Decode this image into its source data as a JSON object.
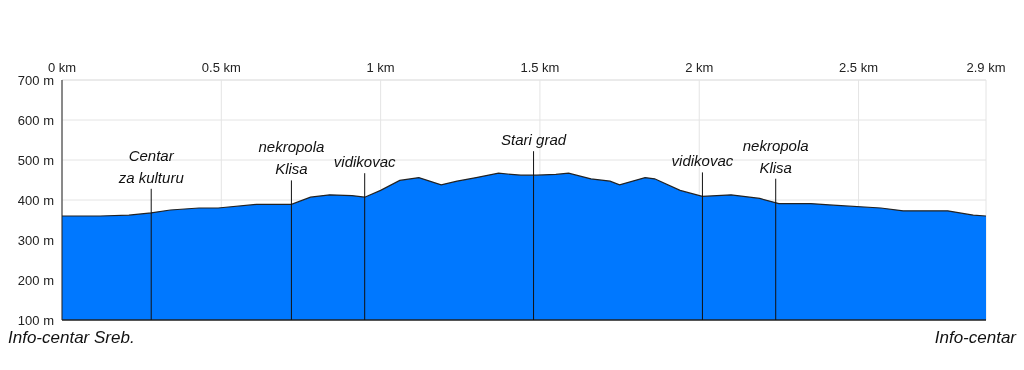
{
  "chart_data": {
    "type": "area",
    "x": [
      0,
      0.12,
      0.21,
      0.28,
      0.34,
      0.43,
      0.49,
      0.61,
      0.72,
      0.78,
      0.84,
      0.91,
      0.95,
      1.0,
      1.06,
      1.12,
      1.19,
      1.24,
      1.3,
      1.37,
      1.44,
      1.49,
      1.55,
      1.59,
      1.66,
      1.72,
      1.75,
      1.83,
      1.86,
      1.94,
      2.01,
      2.1,
      2.19,
      2.25,
      2.35,
      2.42,
      2.57,
      2.64,
      2.78,
      2.86,
      2.9
    ],
    "series": [
      {
        "color": "#0078ff",
        "values": [
          360,
          360,
          362,
          368,
          375,
          380,
          380,
          389,
          389,
          407,
          413,
          411,
          407,
          424,
          449,
          456,
          438,
          447,
          456,
          467,
          462,
          462,
          464,
          467,
          453,
          447,
          438,
          456,
          453,
          424,
          409,
          413,
          404,
          391,
          391,
          387,
          380,
          373,
          373,
          362,
          360
        ]
      }
    ],
    "xlim": [
      0,
      2.9
    ],
    "xticks": [
      {
        "value": 0,
        "label": "0 km"
      },
      {
        "value": 0.5,
        "label": "0.5 km"
      },
      {
        "value": 1,
        "label": "1 km"
      },
      {
        "value": 1.5,
        "label": "1.5 km"
      },
      {
        "value": 2,
        "label": "2 km"
      },
      {
        "value": 2.5,
        "label": "2.5 km"
      },
      {
        "value": 2.9,
        "label": "2.9 km"
      }
    ],
    "ylim": [
      100,
      700
    ],
    "yticks": [
      {
        "value": 100,
        "label": "100 m"
      },
      {
        "value": 200,
        "label": "200 m"
      },
      {
        "value": 300,
        "label": "300 m"
      },
      {
        "value": 400,
        "label": "400 m"
      },
      {
        "value": 500,
        "label": "500 m"
      },
      {
        "value": 600,
        "label": "600 m"
      },
      {
        "value": 700,
        "label": "700 m"
      }
    ],
    "grid": true,
    "ref_lines": [
      {
        "axis": "x",
        "value": 0.28,
        "label": "Centar\nza kulturu"
      },
      {
        "axis": "x",
        "value": 0.72,
        "label": "nekropola\nKlisa"
      },
      {
        "axis": "x",
        "value": 0.95,
        "label": "vidikovac"
      },
      {
        "axis": "x",
        "value": 1.48,
        "label": "Stari grad"
      },
      {
        "axis": "x",
        "value": 2.01,
        "label": "vidikovac"
      },
      {
        "axis": "x",
        "value": 2.24,
        "label": "nekropola\nKlisa"
      }
    ],
    "annotations": [
      "Info-centar Sreb.",
      "Info-centar"
    ]
  }
}
